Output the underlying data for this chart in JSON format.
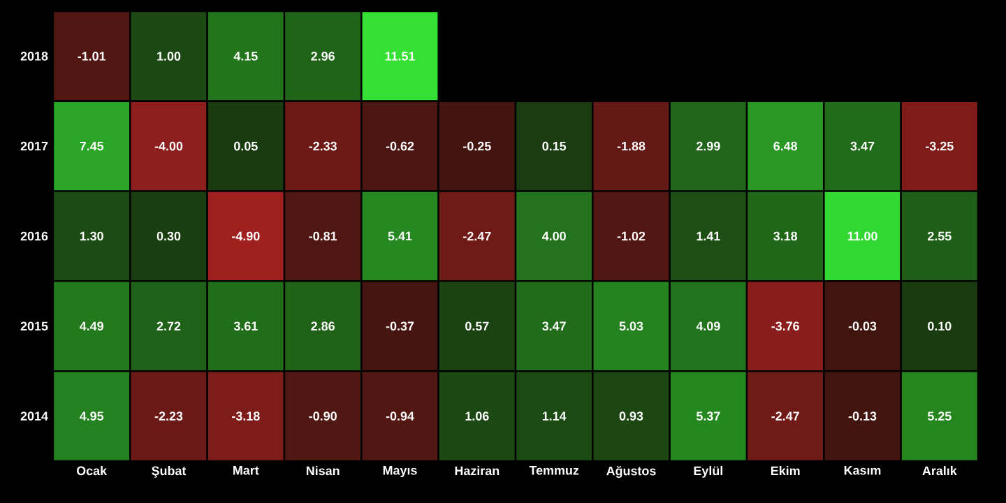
{
  "chart_data": {
    "type": "heatmap",
    "categories": [
      "Ocak",
      "Şubat",
      "Mart",
      "Nisan",
      "Mayıs",
      "Haziran",
      "Temmuz",
      "Ağustos",
      "Eylül",
      "Ekim",
      "Kasım",
      "Aralık"
    ],
    "y_categories": [
      "2018",
      "2017",
      "2016",
      "2015",
      "2014"
    ],
    "cells": [
      [
        -1.01,
        1.0,
        4.15,
        2.96,
        11.51,
        null,
        null,
        null,
        null,
        null,
        null,
        null
      ],
      [
        7.45,
        -4.0,
        0.05,
        -2.33,
        -0.62,
        -0.25,
        0.15,
        -1.88,
        2.99,
        6.48,
        3.47,
        -3.25
      ],
      [
        1.3,
        0.3,
        -4.9,
        -0.81,
        5.41,
        -2.47,
        4.0,
        -1.02,
        1.41,
        3.18,
        11.0,
        2.55
      ],
      [
        4.49,
        2.72,
        3.61,
        2.86,
        -0.37,
        0.57,
        3.47,
        5.03,
        4.09,
        -3.76,
        -0.03,
        0.1
      ],
      [
        4.95,
        -2.23,
        -3.18,
        -0.9,
        -0.94,
        1.06,
        1.14,
        0.93,
        5.37,
        -2.47,
        -0.13,
        5.25
      ]
    ],
    "cell_labels": [
      [
        "-1.01",
        "1.00",
        "4.15",
        "2.96",
        "11.51",
        null,
        null,
        null,
        null,
        null,
        null,
        null
      ],
      [
        "7.45",
        "-4.00",
        "0.05",
        "-2.33",
        "-0.62",
        "-0.25",
        "0.15",
        "-1.88",
        "2.99",
        "6.48",
        "3.47",
        "-3.25"
      ],
      [
        "1.30",
        "0.30",
        "-4.90",
        "-0.81",
        "5.41",
        "-2.47",
        "4.00",
        "-1.02",
        "1.41",
        "3.18",
        "11.00",
        "2.55"
      ],
      [
        "4.49",
        "2.72",
        "3.61",
        "2.86",
        "-0.37",
        "0.57",
        "3.47",
        "5.03",
        "4.09",
        "-3.76",
        "-0.03",
        "0.10"
      ],
      [
        "4.95",
        "-2.23",
        "-3.18",
        "-0.90",
        "-0.94",
        "1.06",
        "1.14",
        "0.93",
        "5.37",
        "-2.47",
        "-0.13",
        "5.25"
      ]
    ]
  }
}
